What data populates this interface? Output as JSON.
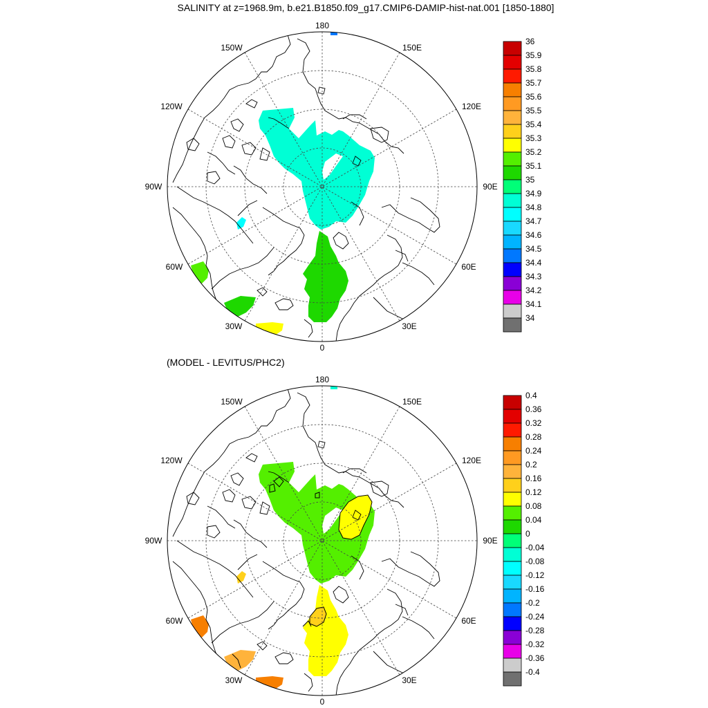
{
  "figure": {
    "top_title": "SALINITY at z=1968.9m, b.e21.B1850.f09_g17.CMIP6-DAMIP-hist-nat.001 [1850-1880]",
    "bottom_title": "(MODEL - LEVITUS/PHC2)"
  },
  "map_labels": {
    "lon_180": "180",
    "lon_150w": "150W",
    "lon_150e": "150E",
    "lon_120w": "120W",
    "lon_120e": "120E",
    "lon_90w": "90W",
    "lon_90e": "90E",
    "lon_60w": "60W",
    "lon_60e": "60E",
    "lon_30w": "30W",
    "lon_30e": "30E",
    "lon_0": "0"
  },
  "top_colorbar": {
    "labels": [
      "36",
      "35.9",
      "35.8",
      "35.7",
      "35.6",
      "35.5",
      "35.4",
      "35.3",
      "35.2",
      "35.1",
      "35",
      "34.9",
      "34.8",
      "34.7",
      "34.6",
      "34.5",
      "34.4",
      "34.3",
      "34.2",
      "34.1",
      "34"
    ],
    "colors": [
      "#c80000",
      "#e30000",
      "#ff1a00",
      "#f77f00",
      "#ff9a22",
      "#ffb33b",
      "#ffd01b",
      "#ffff00",
      "#54ef00",
      "#1ed800",
      "#00ff78",
      "#00ffd5",
      "#00ffff",
      "#19d9ff",
      "#00b4ff",
      "#0078ff",
      "#0000ff",
      "#8a00d6",
      "#e800e8",
      "#cccccc",
      "#707070"
    ]
  },
  "bottom_colorbar": {
    "labels": [
      "0.4",
      "0.36",
      "0.32",
      "0.28",
      "0.24",
      "0.2",
      "0.16",
      "0.12",
      "0.08",
      "0.04",
      "0",
      "-0.04",
      "-0.08",
      "-0.12",
      "-0.16",
      "-0.2",
      "-0.24",
      "-0.28",
      "-0.32",
      "-0.36",
      "-0.4"
    ],
    "colors": [
      "#c80000",
      "#e30000",
      "#ff1a00",
      "#f77f00",
      "#ff9a22",
      "#ffb33b",
      "#ffd01b",
      "#ffff00",
      "#54ef00",
      "#1ed800",
      "#00ff78",
      "#00ffd5",
      "#00ffff",
      "#19d9ff",
      "#00b4ff",
      "#0078ff",
      "#0000ff",
      "#8a00d6",
      "#e800e8",
      "#cccccc",
      "#707070"
    ]
  },
  "field_colors": {
    "top_arctic": "#00ffd5",
    "top_nordic": "#1ed800",
    "top_labrador": "#54ef00",
    "top_small_patch": "#00ffff",
    "top_atlantic_south": "#ffff00",
    "top_bering_tip": "#0078ff",
    "bot_arctic": "#54ef00",
    "bot_eurasian_high": "#ffff00",
    "bot_nordic": "#ffff00",
    "bot_fram_patch": "#ffd01b",
    "bot_labrador": "#f77f00",
    "bot_atlantic_a": "#ffb33b",
    "bot_atlantic_b": "#f77f00",
    "bot_small_patch": "#ffd01b",
    "bot_bering_tip": "#00ffd5"
  }
}
